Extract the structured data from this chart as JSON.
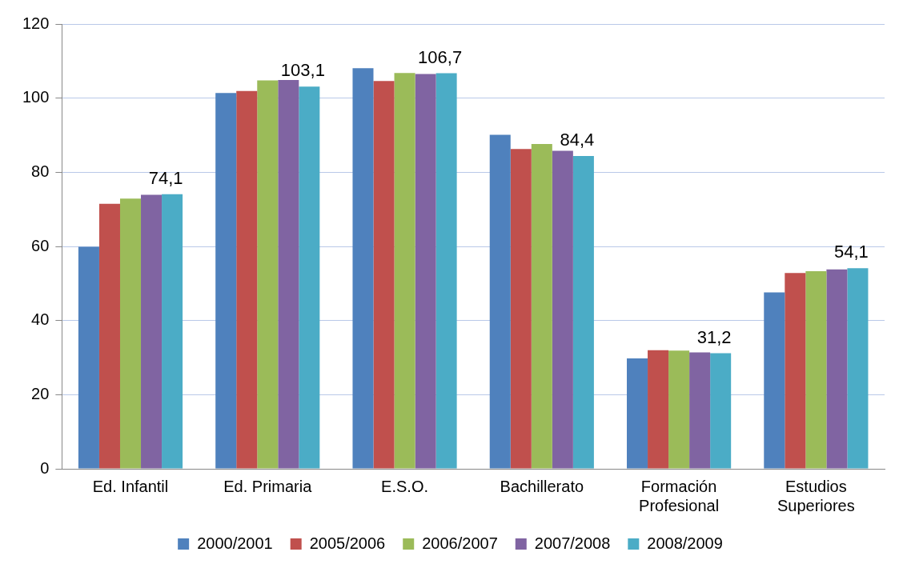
{
  "chart_data": {
    "type": "bar",
    "categories": [
      "Ed. Infantil",
      "Ed. Primaria",
      "E.S.O.",
      "Bachillerato",
      "Formación Profesional",
      "Estudios Superiores"
    ],
    "series": [
      {
        "name": "2000/2001",
        "color": "#4f81bd",
        "values": [
          59.9,
          101.4,
          108.1,
          90.1,
          29.8,
          47.6
        ]
      },
      {
        "name": "2005/2006",
        "color": "#c0504d",
        "values": [
          71.5,
          101.9,
          104.6,
          86.3,
          32.0,
          52.8
        ]
      },
      {
        "name": "2006/2007",
        "color": "#9bbb59",
        "values": [
          72.9,
          104.8,
          106.8,
          87.6,
          31.9,
          53.3
        ]
      },
      {
        "name": "2007/2008",
        "color": "#8064a2",
        "values": [
          73.9,
          104.9,
          106.5,
          85.8,
          31.4,
          53.8
        ]
      },
      {
        "name": "2008/2009",
        "color": "#4bacc6",
        "values": [
          74.1,
          103.1,
          106.7,
          84.4,
          31.2,
          54.1
        ],
        "value_labels": [
          "74,1",
          "103,1",
          "106,7",
          "84,4",
          "31,2",
          "54,1"
        ]
      }
    ],
    "ylim": [
      0,
      120
    ],
    "yticks": [
      0,
      20,
      40,
      60,
      80,
      100,
      120
    ],
    "grid": "y",
    "legend": "bottom"
  }
}
